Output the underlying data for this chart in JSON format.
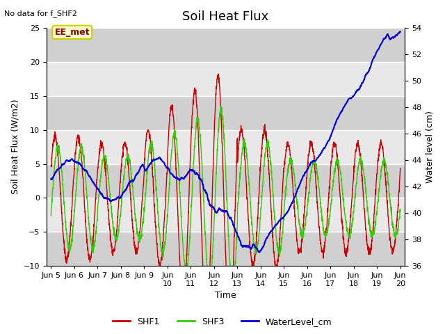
{
  "title": "Soil Heat Flux",
  "subtitle": "No data for f_SHF2",
  "ylabel_left": "Soil Heat Flux (W/m2)",
  "ylabel_right": "Water level (cm)",
  "xlabel": "Time",
  "annotation": "EE_met",
  "ylim_left": [
    -10,
    25
  ],
  "ylim_right": [
    36,
    54
  ],
  "xlim": [
    4.8,
    20.2
  ],
  "xtick_labels": [
    "Jun 5",
    "Jun 6",
    "Jun 7",
    "Jun 8",
    "Jun 9",
    "Jun\n10",
    "Jun\n11",
    "Jun\n12",
    "Jun\n13",
    "Jun\n14",
    "Jun\n15",
    "Jun\n16",
    "Jun\n17",
    "Jun\n18",
    "Jun\n19",
    "Jun\n20"
  ],
  "xtick_positions": [
    5,
    6,
    7,
    8,
    9,
    10,
    11,
    12,
    13,
    14,
    15,
    16,
    17,
    18,
    19,
    20
  ],
  "legend_labels": [
    "SHF1",
    "SHF3",
    "WaterLevel_cm"
  ],
  "legend_colors": [
    "#cc0000",
    "#33cc00",
    "#0000dd"
  ],
  "bg_color": "#ffffff",
  "plot_bg_color_light": "#e8e8e8",
  "plot_bg_color_dark": "#d0d0d0",
  "grid_color": "#ffffff",
  "title_fontsize": 13,
  "label_fontsize": 9,
  "tick_fontsize": 8,
  "annotation_color": "#8b0000",
  "annotation_bg": "#ffffcc",
  "annotation_edge": "#cccc00"
}
